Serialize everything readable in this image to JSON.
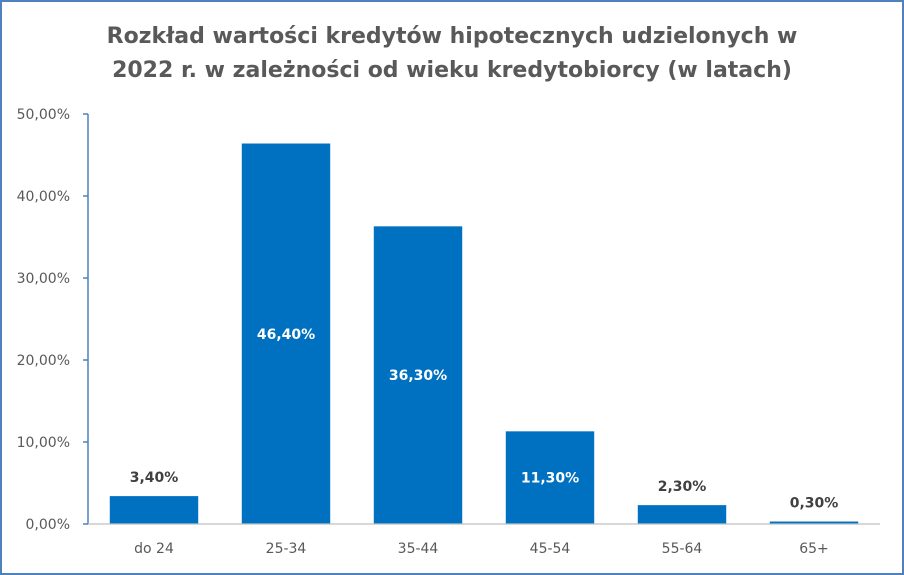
{
  "chart_data": {
    "type": "bar",
    "title": "Rozkład wartości kredytów hipotecznych udzielonych w 2022 r. w zależności od wieku kredytobiorcy (w latach)",
    "title_lines": [
      "Rozkład wartości kredytów hipotecznych udzielonych w",
      "2022 r. w zależności od wieku kredytobiorcy (w latach)"
    ],
    "xlabel": "",
    "ylabel": "",
    "categories": [
      "do 24",
      "25-34",
      "35-44",
      "45-54",
      "55-64",
      "65+"
    ],
    "values": [
      3.4,
      46.4,
      36.3,
      11.3,
      2.3,
      0.3
    ],
    "data_labels": [
      "3,40%",
      "46,40%",
      "36,30%",
      "11,30%",
      "2,30%",
      "0,30%"
    ],
    "label_inside": [
      false,
      true,
      true,
      true,
      false,
      false
    ],
    "ylim": [
      0,
      50
    ],
    "yticks": [
      0,
      10,
      20,
      30,
      40,
      50
    ],
    "ytick_labels": [
      "0,00%",
      "10,00%",
      "20,00%",
      "30,00%",
      "40,00%",
      "50,00%"
    ],
    "grid": false,
    "legend": "none",
    "colors": {
      "bar": "#0070c0",
      "axis": "#4f81bd",
      "text": "#595959",
      "label_inside": "#ffffff",
      "label_outside": "#404040",
      "frame": "#4f81bd"
    }
  }
}
